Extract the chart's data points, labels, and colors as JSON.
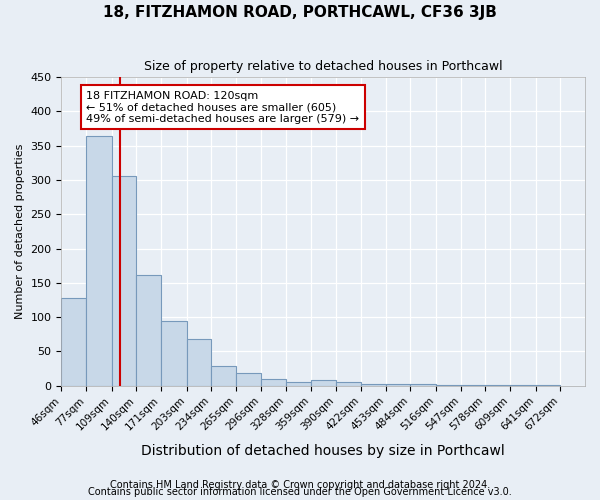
{
  "title": "18, FITZHAMON ROAD, PORTHCAWL, CF36 3JB",
  "subtitle": "Size of property relative to detached houses in Porthcawl",
  "xlabel": "Distribution of detached houses by size in Porthcawl",
  "ylabel": "Number of detached properties",
  "footnote1": "Contains HM Land Registry data © Crown copyright and database right 2024.",
  "footnote2": "Contains public sector information licensed under the Open Government Licence v3.0.",
  "bar_edges": [
    46,
    77,
    109,
    140,
    171,
    203,
    234,
    265,
    296,
    328,
    359,
    390,
    422,
    453,
    484,
    516,
    547,
    578,
    609,
    641,
    672
  ],
  "bar_heights": [
    128,
    364,
    305,
    162,
    94,
    68,
    29,
    19,
    10,
    5,
    8,
    5,
    3,
    3,
    2,
    1,
    1,
    1,
    1,
    1
  ],
  "bar_color": "#c8d8e8",
  "bar_edge_color": "#7799bb",
  "property_line_x": 120,
  "property_line_color": "#cc0000",
  "annotation_text": "18 FITZHAMON ROAD: 120sqm\n← 51% of detached houses are smaller (605)\n49% of semi-detached houses are larger (579) →",
  "annotation_box_color": "#ffffff",
  "annotation_box_edge_color": "#cc0000",
  "ylim": [
    0,
    450
  ],
  "xlim_min": 46,
  "xlim_max": 703,
  "background_color": "#e8eef5",
  "grid_color": "#ffffff",
  "tick_labels": [
    "46sqm",
    "77sqm",
    "109sqm",
    "140sqm",
    "171sqm",
    "203sqm",
    "234sqm",
    "265sqm",
    "296sqm",
    "328sqm",
    "359sqm",
    "390sqm",
    "422sqm",
    "453sqm",
    "484sqm",
    "516sqm",
    "547sqm",
    "578sqm",
    "609sqm",
    "641sqm",
    "672sqm"
  ],
  "yticks": [
    0,
    50,
    100,
    150,
    200,
    250,
    300,
    350,
    400,
    450
  ],
  "title_fontsize": 11,
  "subtitle_fontsize": 9,
  "ylabel_fontsize": 8,
  "xlabel_fontsize": 10,
  "tick_fontsize": 7.5,
  "annotation_fontsize": 8,
  "footnote_fontsize": 7
}
